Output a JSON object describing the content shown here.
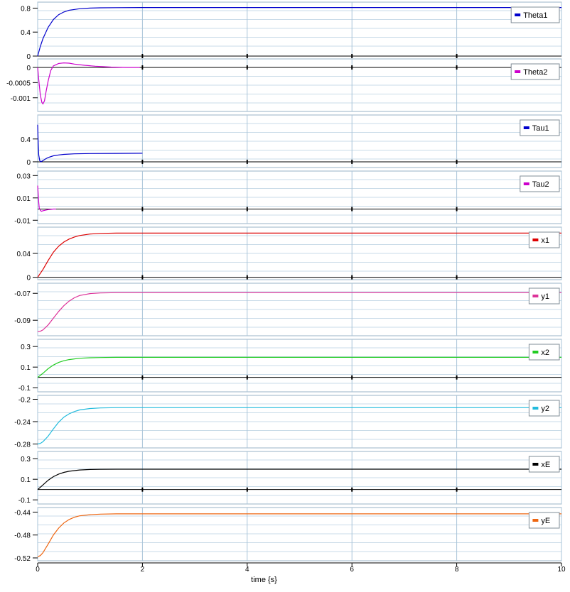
{
  "xaxis": {
    "label": "time {s}",
    "range": [
      0,
      10
    ],
    "ticks": [
      0,
      2,
      4,
      6,
      8,
      10
    ],
    "tick_labels": [
      "0",
      "2",
      "4",
      "6",
      "8",
      "10"
    ]
  },
  "chart_data": [
    {
      "type": "line",
      "series": [
        {
          "name": "Theta1",
          "color": "#0000cc",
          "x": [
            0,
            0.05,
            0.1,
            0.2,
            0.3,
            0.4,
            0.5,
            0.6,
            0.8,
            1.0,
            1.2,
            1.5,
            2.0,
            3,
            5,
            10
          ],
          "y": [
            0,
            0.16,
            0.29,
            0.48,
            0.61,
            0.69,
            0.735,
            0.765,
            0.79,
            0.8,
            0.805,
            0.808,
            0.81,
            0.81,
            0.81,
            0.81
          ]
        }
      ],
      "ylim": [
        0,
        0.9
      ],
      "yticks": [
        0,
        0.4,
        0.8
      ],
      "ytick_labels": [
        "0",
        "0.4",
        "0.8"
      ],
      "zero_line": true
    },
    {
      "type": "line",
      "series": [
        {
          "name": "Theta2",
          "color": "#cc00cc",
          "x": [
            0,
            0.02,
            0.05,
            0.08,
            0.1,
            0.13,
            0.16,
            0.2,
            0.25,
            0.3,
            0.4,
            0.5,
            0.6,
            0.7,
            0.9,
            1.1,
            1.4,
            1.7,
            1.95
          ],
          "y": [
            0,
            -0.0004,
            -0.0009,
            -0.00115,
            -0.0012,
            -0.0011,
            -0.0008,
            -0.00045,
            -0.0001,
            5e-05,
            0.00013,
            0.00015,
            0.00014,
            0.00011,
            7e-05,
            4e-05,
            1e-05,
            0,
            0
          ]
        }
      ],
      "ylim": [
        -0.00145,
        0.00028
      ],
      "yticks": [
        -0.001,
        -0.0005,
        0
      ],
      "ytick_labels": [
        "-0.001",
        "-0.0005",
        "0"
      ],
      "zero_line": true
    },
    {
      "type": "line",
      "series": [
        {
          "name": "Tau1",
          "color": "#0000cc",
          "x": [
            0,
            0.01,
            0.02,
            0.04,
            0.06,
            0.08,
            0.1,
            0.15,
            0.2,
            0.3,
            0.4,
            0.5,
            0.7,
            1.0,
            1.5,
            2.0
          ],
          "y": [
            0.65,
            0.35,
            0.12,
            0.02,
            0.0,
            0.01,
            0.02,
            0.05,
            0.075,
            0.105,
            0.12,
            0.13,
            0.14,
            0.145,
            0.148,
            0.15
          ]
        }
      ],
      "ylim": [
        -0.1,
        0.82
      ],
      "yticks": [
        0,
        0.4
      ],
      "ytick_labels": [
        "0",
        "0.4"
      ],
      "zero_line": true
    },
    {
      "type": "line",
      "series": [
        {
          "name": "Tau2",
          "color": "#cc00cc",
          "x": [
            0,
            0.01,
            0.02,
            0.03,
            0.05,
            0.07,
            0.1,
            0.15,
            0.2,
            0.3,
            0.35
          ],
          "y": [
            0.021,
            0.014,
            0.006,
            0.001,
            -0.001,
            -0.002,
            -0.0015,
            -0.001,
            -0.0005,
            0,
            0
          ]
        }
      ],
      "ylim": [
        -0.013,
        0.034
      ],
      "yticks": [
        -0.01,
        0.01,
        0.03
      ],
      "ytick_labels": [
        "-0.01",
        "0.01",
        "0.03"
      ],
      "zero_line": true
    },
    {
      "type": "line",
      "series": [
        {
          "name": "x1",
          "color": "#dd0000",
          "x": [
            0,
            0.1,
            0.2,
            0.3,
            0.4,
            0.5,
            0.6,
            0.7,
            0.8,
            1.0,
            1.2,
            1.5,
            2,
            3,
            10
          ],
          "y": [
            0,
            0.013,
            0.028,
            0.042,
            0.052,
            0.059,
            0.064,
            0.0675,
            0.07,
            0.0725,
            0.0735,
            0.074,
            0.074,
            0.074,
            0.074
          ]
        }
      ],
      "ylim": [
        -0.004,
        0.084
      ],
      "yticks": [
        0,
        0.04
      ],
      "ytick_labels": [
        "0",
        "0.04"
      ],
      "zero_line": true
    },
    {
      "type": "line",
      "series": [
        {
          "name": "y1",
          "color": "#dd3399",
          "x": [
            0,
            0.05,
            0.1,
            0.2,
            0.3,
            0.4,
            0.5,
            0.6,
            0.7,
            0.8,
            1.0,
            1.2,
            1.5,
            2,
            10
          ],
          "y": [
            -0.0985,
            -0.0982,
            -0.0972,
            -0.0935,
            -0.0885,
            -0.0835,
            -0.0792,
            -0.0758,
            -0.0733,
            -0.0716,
            -0.0702,
            -0.0697,
            -0.0695,
            -0.0695,
            -0.0695
          ]
        }
      ],
      "ylim": [
        -0.1015,
        -0.0625
      ],
      "yticks": [
        -0.09,
        -0.07
      ],
      "ytick_labels": [
        "-0.09",
        "-0.07"
      ],
      "zero_line": false
    },
    {
      "type": "line",
      "series": [
        {
          "name": "x2",
          "color": "#22cc22",
          "x": [
            0,
            0.1,
            0.2,
            0.3,
            0.4,
            0.5,
            0.6,
            0.8,
            1.0,
            1.2,
            1.5,
            2,
            10
          ],
          "y": [
            0,
            0.04,
            0.085,
            0.12,
            0.145,
            0.162,
            0.173,
            0.186,
            0.191,
            0.193,
            0.195,
            0.195,
            0.195
          ]
        }
      ],
      "ylim": [
        -0.14,
        0.37
      ],
      "yticks": [
        -0.1,
        0.1,
        0.3
      ],
      "ytick_labels": [
        "-0.1",
        "0.1",
        "0.3"
      ],
      "zero_line": true
    },
    {
      "type": "line",
      "series": [
        {
          "name": "y2",
          "color": "#22bbdd",
          "x": [
            0,
            0.05,
            0.1,
            0.2,
            0.3,
            0.4,
            0.5,
            0.6,
            0.7,
            0.8,
            1.0,
            1.2,
            1.5,
            2,
            10
          ],
          "y": [
            -0.28,
            -0.279,
            -0.276,
            -0.266,
            -0.253,
            -0.241,
            -0.232,
            -0.226,
            -0.222,
            -0.219,
            -0.2165,
            -0.2155,
            -0.215,
            -0.215,
            -0.215
          ]
        }
      ],
      "ylim": [
        -0.287,
        -0.193
      ],
      "yticks": [
        -0.28,
        -0.24,
        -0.2
      ],
      "ytick_labels": [
        "-0.28",
        "-0.24",
        "-0.2"
      ],
      "zero_line": false
    },
    {
      "type": "line",
      "series": [
        {
          "name": "xE",
          "color": "#000000",
          "x": [
            0,
            0.1,
            0.2,
            0.3,
            0.4,
            0.5,
            0.6,
            0.8,
            1.0,
            1.2,
            1.5,
            2,
            10
          ],
          "y": [
            0,
            0.045,
            0.09,
            0.125,
            0.15,
            0.167,
            0.178,
            0.19,
            0.195,
            0.197,
            0.198,
            0.198,
            0.198
          ]
        }
      ],
      "ylim": [
        -0.14,
        0.37
      ],
      "yticks": [
        -0.1,
        0.1,
        0.3
      ],
      "ytick_labels": [
        "-0.1",
        "0.1",
        "0.3"
      ],
      "zero_line": true
    },
    {
      "type": "line",
      "series": [
        {
          "name": "yE",
          "color": "#ee6611",
          "x": [
            0,
            0.05,
            0.1,
            0.2,
            0.3,
            0.4,
            0.5,
            0.6,
            0.7,
            0.8,
            1.0,
            1.2,
            1.5,
            2,
            10
          ],
          "y": [
            -0.518,
            -0.516,
            -0.511,
            -0.496,
            -0.48,
            -0.468,
            -0.459,
            -0.453,
            -0.449,
            -0.4465,
            -0.4445,
            -0.4435,
            -0.443,
            -0.443,
            -0.443
          ]
        }
      ],
      "ylim": [
        -0.525,
        -0.432
      ],
      "yticks": [
        -0.52,
        -0.48,
        -0.44
      ],
      "ytick_labels": [
        "-0.52",
        "-0.48",
        "-0.44"
      ],
      "zero_line": false
    }
  ]
}
